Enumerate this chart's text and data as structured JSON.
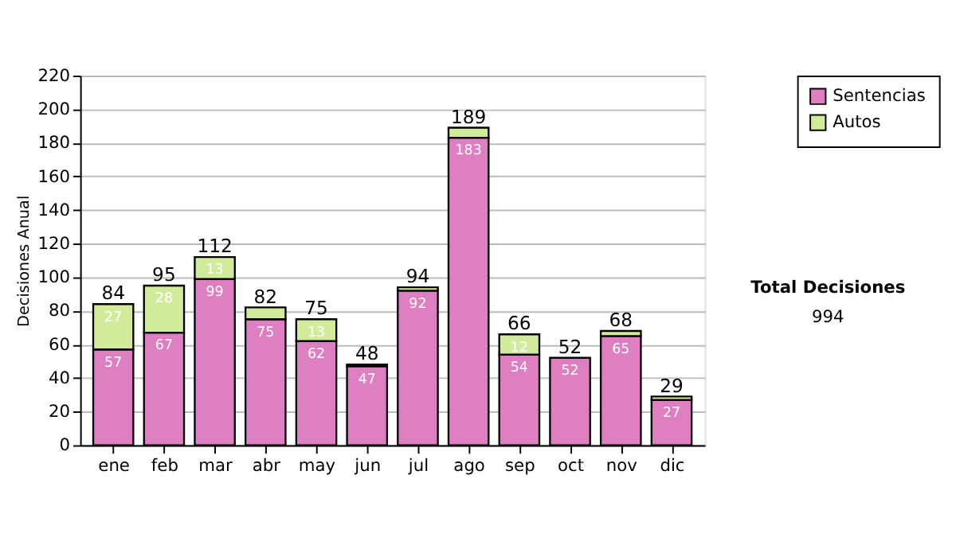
{
  "chart_data": {
    "type": "bar",
    "stacked": true,
    "ylabel": "Decisiones Anual",
    "categories": [
      "ene",
      "feb",
      "mar",
      "abr",
      "may",
      "jun",
      "jul",
      "ago",
      "sep",
      "oct",
      "nov",
      "dic"
    ],
    "series": [
      {
        "name": "Sentencias",
        "color": "#dd7fc0",
        "values": [
          57,
          67,
          99,
          75,
          62,
          47,
          92,
          183,
          54,
          52,
          65,
          27
        ],
        "value_labels": [
          "57",
          "67",
          "99",
          "75",
          "62",
          "47",
          "92",
          "183",
          "54",
          "52",
          "65",
          "27"
        ]
      },
      {
        "name": "Autos",
        "color": "#d2eb9a",
        "values": [
          27,
          28,
          13,
          7,
          13,
          1,
          2,
          6,
          12,
          0,
          3,
          2
        ],
        "value_labels": [
          "27",
          "28",
          "13",
          null,
          "13",
          null,
          null,
          null,
          "12",
          null,
          null,
          null
        ]
      }
    ],
    "totals": [
      "84",
      "95",
      "112",
      "82",
      "75",
      "48",
      "94",
      "189",
      "66",
      "52",
      "68",
      "29"
    ],
    "ylim": [
      0,
      220
    ],
    "yticks": [
      0,
      20,
      40,
      60,
      80,
      100,
      120,
      140,
      160,
      180,
      200,
      220
    ],
    "grid": "y",
    "legend": "right",
    "annotations": [
      "Total Decisiones",
      "994"
    ]
  }
}
